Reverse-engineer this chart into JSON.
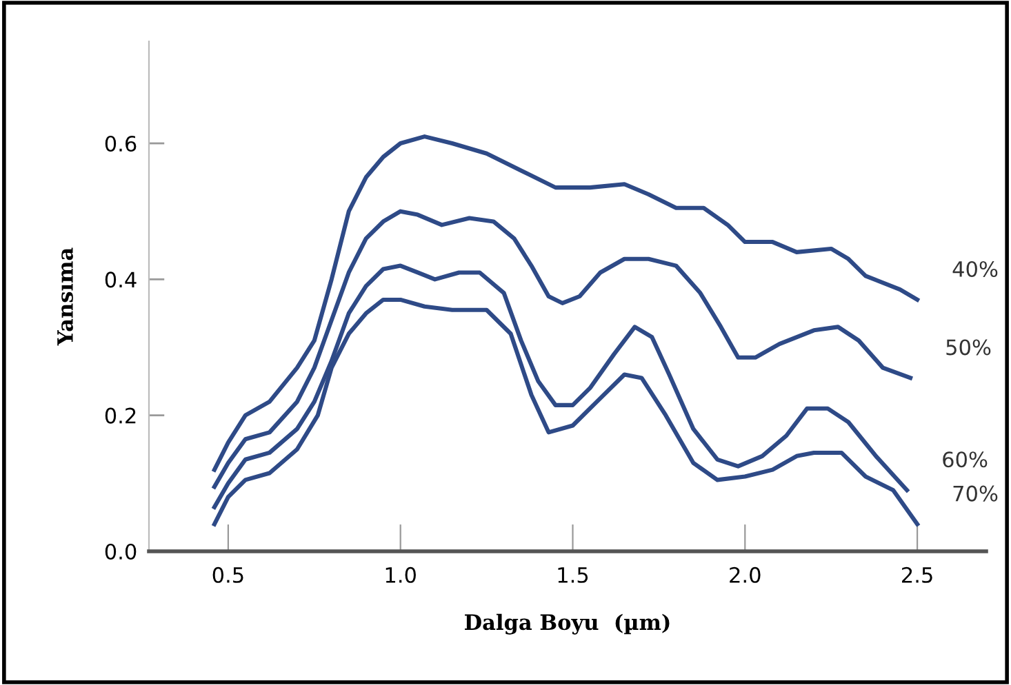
{
  "chart_data": {
    "type": "line",
    "xlabel": "Dalga Boyu  (µm)",
    "ylabel": "Yansıma",
    "xlim": [
      0.27,
      2.7
    ],
    "ylim": [
      0,
      0.75
    ],
    "xticks": [
      0.5,
      {
        "value": 1,
        "label": "1.0"
      },
      1.5,
      {
        "value": 2,
        "label": "2.0"
      },
      2.5
    ],
    "yticks": [
      {
        "value": 0,
        "label": "0.0"
      },
      0.2,
      0.4,
      0.6
    ],
    "grid": false,
    "legend": false,
    "marker": "none",
    "line_style": "solid",
    "series": [
      {
        "color": "#2e4a87",
        "x": [
          0.46,
          0.5,
          0.55,
          0.62,
          0.7,
          0.75,
          0.8,
          0.85,
          0.9,
          0.95,
          1.0,
          1.07,
          1.15,
          1.25,
          1.35,
          1.45,
          1.55,
          1.65,
          1.72,
          1.8,
          1.88,
          1.95,
          2.0,
          2.08,
          2.15,
          2.25,
          2.3,
          2.35,
          2.45,
          2.5
        ],
        "values": [
          0.12,
          0.16,
          0.2,
          0.22,
          0.27,
          0.31,
          0.4,
          0.5,
          0.55,
          0.58,
          0.6,
          0.61,
          0.6,
          0.585,
          0.56,
          0.535,
          0.535,
          0.54,
          0.525,
          0.505,
          0.505,
          0.48,
          0.455,
          0.455,
          0.44,
          0.445,
          0.43,
          0.405,
          0.385,
          0.37
        ]
      },
      {
        "color": "#2e4a87",
        "x": [
          0.46,
          0.5,
          0.55,
          0.62,
          0.7,
          0.75,
          0.8,
          0.85,
          0.9,
          0.95,
          1.0,
          1.05,
          1.12,
          1.2,
          1.27,
          1.33,
          1.38,
          1.43,
          1.47,
          1.52,
          1.58,
          1.65,
          1.72,
          1.8,
          1.87,
          1.93,
          1.98,
          2.03,
          2.1,
          2.2,
          2.27,
          2.33,
          2.4,
          2.48
        ],
        "values": [
          0.095,
          0.13,
          0.165,
          0.175,
          0.22,
          0.27,
          0.34,
          0.41,
          0.46,
          0.485,
          0.5,
          0.495,
          0.48,
          0.49,
          0.485,
          0.46,
          0.42,
          0.375,
          0.365,
          0.375,
          0.41,
          0.43,
          0.43,
          0.42,
          0.38,
          0.33,
          0.285,
          0.285,
          0.305,
          0.325,
          0.33,
          0.31,
          0.27,
          0.255
        ]
      },
      {
        "color": "#2e4a87",
        "x": [
          0.46,
          0.5,
          0.55,
          0.62,
          0.7,
          0.75,
          0.8,
          0.85,
          0.9,
          0.95,
          1.0,
          1.05,
          1.1,
          1.17,
          1.23,
          1.3,
          1.35,
          1.4,
          1.45,
          1.5,
          1.55,
          1.62,
          1.68,
          1.73,
          1.78,
          1.85,
          1.92,
          1.98,
          2.05,
          2.12,
          2.18,
          2.24,
          2.3,
          2.38,
          2.47
        ],
        "values": [
          0.065,
          0.1,
          0.135,
          0.145,
          0.18,
          0.22,
          0.28,
          0.35,
          0.39,
          0.415,
          0.42,
          0.41,
          0.4,
          0.41,
          0.41,
          0.38,
          0.31,
          0.25,
          0.215,
          0.215,
          0.24,
          0.29,
          0.33,
          0.315,
          0.26,
          0.18,
          0.135,
          0.125,
          0.14,
          0.17,
          0.21,
          0.21,
          0.19,
          0.14,
          0.09
        ]
      },
      {
        "color": "#2e4a87",
        "x": [
          0.46,
          0.5,
          0.55,
          0.62,
          0.7,
          0.76,
          0.8,
          0.85,
          0.9,
          0.95,
          1.0,
          1.07,
          1.15,
          1.25,
          1.32,
          1.38,
          1.43,
          1.5,
          1.57,
          1.65,
          1.7,
          1.77,
          1.85,
          1.92,
          2.0,
          2.08,
          2.15,
          2.2,
          2.28,
          2.35,
          2.43,
          2.5
        ],
        "values": [
          0.04,
          0.08,
          0.105,
          0.115,
          0.15,
          0.2,
          0.27,
          0.32,
          0.35,
          0.37,
          0.37,
          0.36,
          0.355,
          0.355,
          0.32,
          0.23,
          0.175,
          0.185,
          0.22,
          0.26,
          0.255,
          0.2,
          0.13,
          0.105,
          0.11,
          0.12,
          0.14,
          0.145,
          0.145,
          0.11,
          0.09,
          0.04
        ]
      }
    ],
    "annotations": [
      {
        "text": "40%",
        "x": 2.5,
        "y": 0.37
      },
      {
        "text": "50%",
        "x": 2.48,
        "y": 0.255
      },
      {
        "text": "60%",
        "x": 2.47,
        "y": 0.09
      },
      {
        "text": "70%",
        "x": 2.5,
        "y": 0.04
      }
    ]
  }
}
